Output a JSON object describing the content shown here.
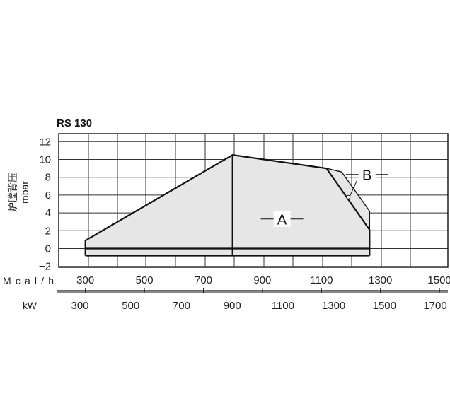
{
  "chart_data": {
    "type": "area",
    "title": "RS 130",
    "ylabel": "炉膛背压",
    "ylabel_unit": "mbar",
    "ylim": [
      -2,
      13
    ],
    "y_ticks": [
      -2,
      0,
      2,
      4,
      6,
      8,
      10,
      12
    ],
    "x_axis_mcal": {
      "label": "Mcal/h",
      "ticks": [
        300,
        500,
        700,
        900,
        1100,
        1300,
        1500
      ]
    },
    "x_axis_kw": {
      "label": "kW",
      "ticks": [
        300,
        500,
        700,
        900,
        1100,
        1300,
        1500,
        1700
      ]
    },
    "grid": true,
    "series": [
      {
        "name": "A",
        "x_kw": [
          380,
          380,
          960,
          1330,
          1500,
          1500
        ],
        "y": [
          -0.8,
          0.9,
          10.5,
          9.0,
          2.1,
          -0.8
        ]
      },
      {
        "name": "B",
        "x_kw": [
          1330,
          1390,
          1500,
          1500
        ],
        "y": [
          9.0,
          8.6,
          4.2,
          2.1
        ]
      }
    ],
    "annotations": [
      {
        "text": "A",
        "x_kw": 1155,
        "y": 3.0
      },
      {
        "text": "B",
        "x_kw": 1490,
        "y": 8.0
      }
    ]
  }
}
